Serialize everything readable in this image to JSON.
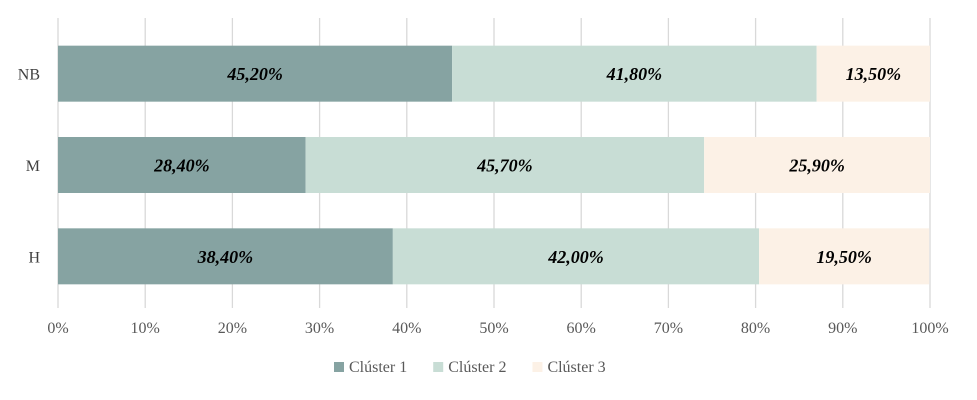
{
  "chart_data": {
    "type": "bar",
    "orientation": "horizontal",
    "stacked": "percent",
    "categories": [
      "NB",
      "M",
      "H"
    ],
    "series": [
      {
        "name": "Clúster 1",
        "values": [
          45.2,
          28.4,
          38.4
        ],
        "labels": [
          "45,20%",
          "28,40%",
          "38,40%"
        ],
        "color": "#86a3a2"
      },
      {
        "name": "Clúster 2",
        "values": [
          41.8,
          45.7,
          42.0
        ],
        "labels": [
          "41,80%",
          "45,70%",
          "42,00%"
        ],
        "color": "#c8ddd5"
      },
      {
        "name": "Clúster 3",
        "values": [
          13.5,
          25.9,
          19.5
        ],
        "labels": [
          "13,50%",
          "25,90%",
          "19,50%"
        ],
        "color": "#fcf1e6"
      }
    ],
    "x_ticks": [
      "0%",
      "10%",
      "20%",
      "30%",
      "40%",
      "50%",
      "60%",
      "70%",
      "80%",
      "90%",
      "100%"
    ],
    "xlim": [
      0,
      100
    ],
    "grid": "vertical",
    "legend": "bottom",
    "title": "",
    "xlabel": "",
    "ylabel": ""
  }
}
